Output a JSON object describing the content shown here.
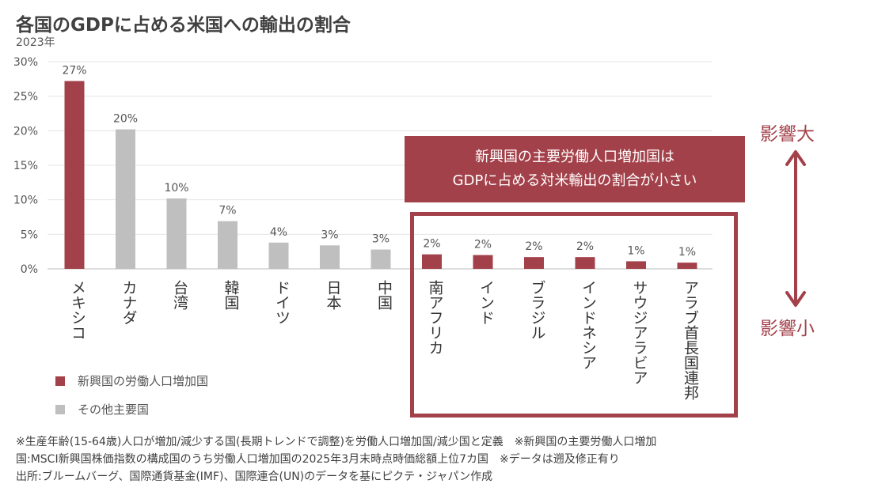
{
  "title": "各国のGDPに占める米国への輸出の割合",
  "subtitle": "2023年",
  "callout": {
    "line1": "新興国の主要労働人口増加国は",
    "line2": "GDPに占める対米輸出の割合が小さい"
  },
  "impact": {
    "high": "影響大",
    "low": "影響小"
  },
  "legend": [
    {
      "label": "新興国の労働人口増加国",
      "color": "#a3414a"
    },
    {
      "label": "その他主要国",
      "color": "#bfbfbf"
    }
  ],
  "footnotes": [
    "※生産年齢(15-64歳)人口が増加/減少する国(長期トレンドで調整)を労働人口増加国/減少国と定義　※新興国の主要労働人口増加",
    "国:MSCI新興国株価指数の構成国のうち労働人口増加国の2025年3月末時点時価総額上位7カ国　※データは遡及修正有り",
    "出所:ブルームバーグ、国際通貨基金(IMF)、国際連合(UN)のデータを基にピクテ・ジャパン作成"
  ],
  "chart_data": {
    "type": "bar",
    "categories": [
      "メキシコ",
      "カナダ",
      "台湾",
      "韓国",
      "ドイツ",
      "日本",
      "中国",
      "南アフリカ",
      "インド",
      "ブラジル",
      "インドネシア",
      "サウジアラビア",
      "アラブ首長国連邦"
    ],
    "values": [
      27.2,
      20.2,
      10.2,
      6.9,
      3.8,
      3.4,
      2.8,
      2.1,
      2.0,
      1.7,
      1.7,
      1.1,
      0.9
    ],
    "data_labels": [
      "27%",
      "20%",
      "10%",
      "7%",
      "4%",
      "3%",
      "3%",
      "2%",
      "2%",
      "2%",
      "2%",
      "1%",
      "1%"
    ],
    "groups": [
      "emerging",
      "other",
      "other",
      "other",
      "other",
      "other",
      "other",
      "emerging",
      "emerging",
      "emerging",
      "emerging",
      "emerging",
      "emerging"
    ],
    "group_colors": {
      "emerging": "#a3414a",
      "other": "#bfbfbf"
    },
    "yticks": [
      "0%",
      "5%",
      "10%",
      "15%",
      "20%",
      "25%",
      "30%"
    ],
    "ylim": [
      0,
      30
    ],
    "grid": true
  }
}
